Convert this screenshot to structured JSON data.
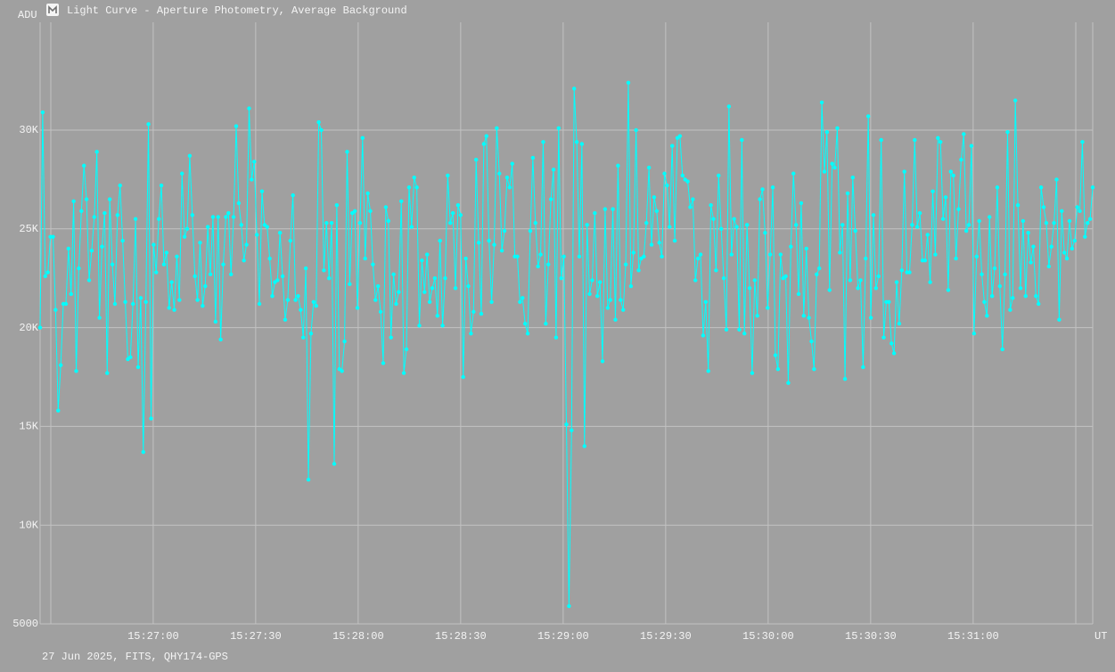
{
  "chart_data": {
    "type": "line",
    "title": "Light Curve - Aperture Photometry, Average Background",
    "y_label": "ADU",
    "x_label": "UT",
    "footer": "27 Jun 2025, FITS, QHY174-GPS",
    "color": "#00ffff",
    "grid": true,
    "ylim": [
      5000,
      35460
    ],
    "yticks": [
      5000,
      {
        "value": 10000,
        "label": "10K"
      },
      {
        "value": 15000,
        "label": "15K"
      },
      {
        "value": 20000,
        "label": "20K"
      },
      {
        "value": 25000,
        "label": "25K"
      },
      {
        "value": 30000,
        "label": "30K"
      }
    ],
    "xlim": [
      55586.9,
      55895
    ],
    "xticks": [
      {
        "value": 55620,
        "label": "15:27:00"
      },
      {
        "value": 55650,
        "label": "15:27:30"
      },
      {
        "value": 55680,
        "label": "15:28:00"
      },
      {
        "value": 55710,
        "label": "15:28:30"
      },
      {
        "value": 55740,
        "label": "15:29:00"
      },
      {
        "value": 55770,
        "label": "15:29:30"
      },
      {
        "value": 55800,
        "label": "15:30:00"
      },
      {
        "value": 55830,
        "label": "15:30:30"
      },
      {
        "value": 55860,
        "label": "15:31:00"
      }
    ],
    "values": [
      20000,
      30900,
      22600,
      22800,
      24600,
      24600,
      20900,
      15800,
      18100,
      21200,
      21200,
      24000,
      21700,
      26400,
      17800,
      23000,
      25900,
      28200,
      26500,
      22400,
      23900,
      25600,
      28900,
      20500,
      24100,
      25800,
      17700,
      26500,
      23200,
      21200,
      25700,
      27200,
      24400,
      21300,
      18400,
      18500,
      21200,
      25500,
      18000,
      21500,
      13700,
      21300,
      30300,
      15400,
      24200,
      22800,
      25500,
      27200,
      23200,
      23800,
      21000,
      22300,
      20900,
      23600,
      21400,
      27800,
      24600,
      25000,
      28700,
      25700,
      22600,
      21400,
      24300,
      21100,
      22100,
      25100,
      22700,
      25600,
      20300,
      25600,
      19400,
      23200,
      25600,
      25800,
      22700,
      25600,
      30200,
      26300,
      25200,
      23400,
      24200,
      31100,
      27500,
      28400,
      24700,
      21200,
      26900,
      25200,
      25100,
      23500,
      21600,
      22300,
      22400,
      24800,
      22600,
      20400,
      21400,
      24400,
      26700,
      21400,
      21600,
      20900,
      19500,
      23000,
      12300,
      19700,
      21300,
      21100,
      30400,
      30000,
      22900,
      25300,
      22500,
      25300,
      13100,
      26200,
      17900,
      17800,
      19300,
      28900,
      22200,
      25800,
      25900,
      21000,
      25300,
      29600,
      23500,
      26800,
      25900,
      23200,
      21400,
      22100,
      20800,
      18200,
      26100,
      25400,
      19500,
      22700,
      21200,
      21800,
      26400,
      17700,
      18900,
      27100,
      25100,
      27600,
      27100,
      20100,
      23400,
      21800,
      23700,
      21300,
      22000,
      22500,
      20600,
      24400,
      20100,
      22500,
      27700,
      25300,
      25800,
      22000,
      26200,
      25700,
      17500,
      23500,
      22100,
      19700,
      20800,
      28500,
      24300,
      20700,
      29300,
      29700,
      24400,
      21300,
      24200,
      30100,
      27800,
      23900,
      24900,
      27600,
      27100,
      28300,
      23600,
      23600,
      21300,
      21500,
      20200,
      19700,
      24900,
      28600,
      25300,
      23100,
      23700,
      29400,
      20200,
      23200,
      26500,
      28000,
      19500,
      30100,
      22500,
      23600,
      15100,
      5900,
      14800,
      32100,
      29400,
      23600,
      29300,
      14000,
      25200,
      21700,
      22400,
      25800,
      21600,
      22300,
      18300,
      26000,
      21000,
      21400,
      26000,
      20400,
      28200,
      21400,
      20900,
      23200,
      32400,
      22100,
      23800,
      30000,
      22900,
      23500,
      23600,
      25300,
      28100,
      24200,
      26600,
      25900,
      24300,
      23600,
      27800,
      27200,
      25100,
      29200,
      24400,
      29600,
      29700,
      27700,
      27500,
      27400,
      26100,
      26500,
      22400,
      23500,
      23700,
      19600,
      21300,
      17800,
      26200,
      25500,
      22900,
      27700,
      25000,
      22500,
      19900,
      31200,
      23700,
      25500,
      25100,
      19900,
      29500,
      19700,
      25200,
      22000,
      17700,
      22400,
      20600,
      26500,
      27000,
      24800,
      21000,
      23700,
      27100,
      18600,
      17900,
      23700,
      22500,
      22600,
      17200,
      24100,
      27800,
      25200,
      21700,
      26300,
      20600,
      24000,
      20500,
      19300,
      17900,
      22700,
      23000,
      31400,
      27900,
      29900,
      21900,
      28300,
      28100,
      30100,
      23800,
      25200,
      17400,
      26800,
      22400,
      27600,
      24900,
      22000,
      22400,
      18000,
      23500,
      30700,
      20500,
      25700,
      22000,
      22600,
      29500,
      19500,
      21300,
      21300,
      19200,
      18700,
      22300,
      20200,
      22900,
      27900,
      22800,
      22800,
      25200,
      29500,
      25100,
      25800,
      23400,
      23400,
      24700,
      22300,
      26900,
      23700,
      29600,
      29400,
      25500,
      26600,
      21900,
      27900,
      27700,
      23500,
      26000,
      28500,
      29800,
      24900,
      25200,
      29200,
      19700,
      23600,
      25400,
      22700,
      21300,
      20600,
      25600,
      21600,
      23000,
      27100,
      22100,
      18900,
      22700,
      29900,
      20900,
      21500,
      31500,
      26200,
      22000,
      25400,
      21600,
      24800,
      23300,
      24100,
      21600,
      21200,
      27100,
      26100,
      25300,
      23100,
      24100,
      25300,
      27500,
      20400,
      25900,
      23800,
      23500,
      25400,
      24000,
      24400,
      26100,
      25900,
      29400,
      24600,
      25300,
      25500,
      27100
    ]
  }
}
